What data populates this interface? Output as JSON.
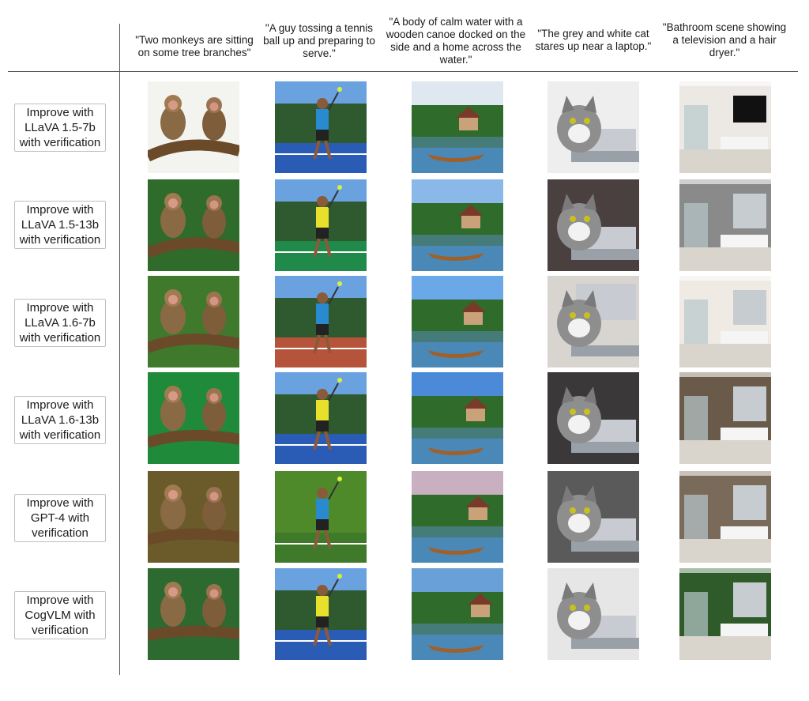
{
  "captions": [
    "\"Two monkeys are sitting on some tree branches\"",
    "\"A guy tossing a tennis ball up and preparing to serve.\"",
    "\"A body of calm water with a wooden canoe docked on the side and a home across the water.\"",
    "\"The grey and white cat stares up near a laptop.\"",
    "\"Bathroom scene showing a television and a hair dryer.\""
  ],
  "rows": [
    {
      "label_lines": [
        "Improve with",
        "LLaVA 1.5-7b",
        "with verification"
      ]
    },
    {
      "label_lines": [
        "Improve with",
        "LLaVA 1.5-13b",
        "with verification"
      ]
    },
    {
      "label_lines": [
        "Improve with",
        "LLaVA 1.6-7b",
        "with verification"
      ]
    },
    {
      "label_lines": [
        "Improve with",
        "LLaVA 1.6-13b",
        "with verification"
      ]
    },
    {
      "label_lines": [
        "Improve with",
        "GPT-4 with",
        "verification"
      ]
    },
    {
      "label_lines": [
        "Improve with",
        "CogVLM with",
        "verification"
      ]
    }
  ],
  "image_subjects": [
    "monkeys-on-branches",
    "tennis-player-serving",
    "lake-with-canoe-and-house",
    "cat-near-laptop",
    "bathroom-interior"
  ],
  "colors": {
    "divider": "#555555",
    "label_border": "#bfbfbf"
  }
}
